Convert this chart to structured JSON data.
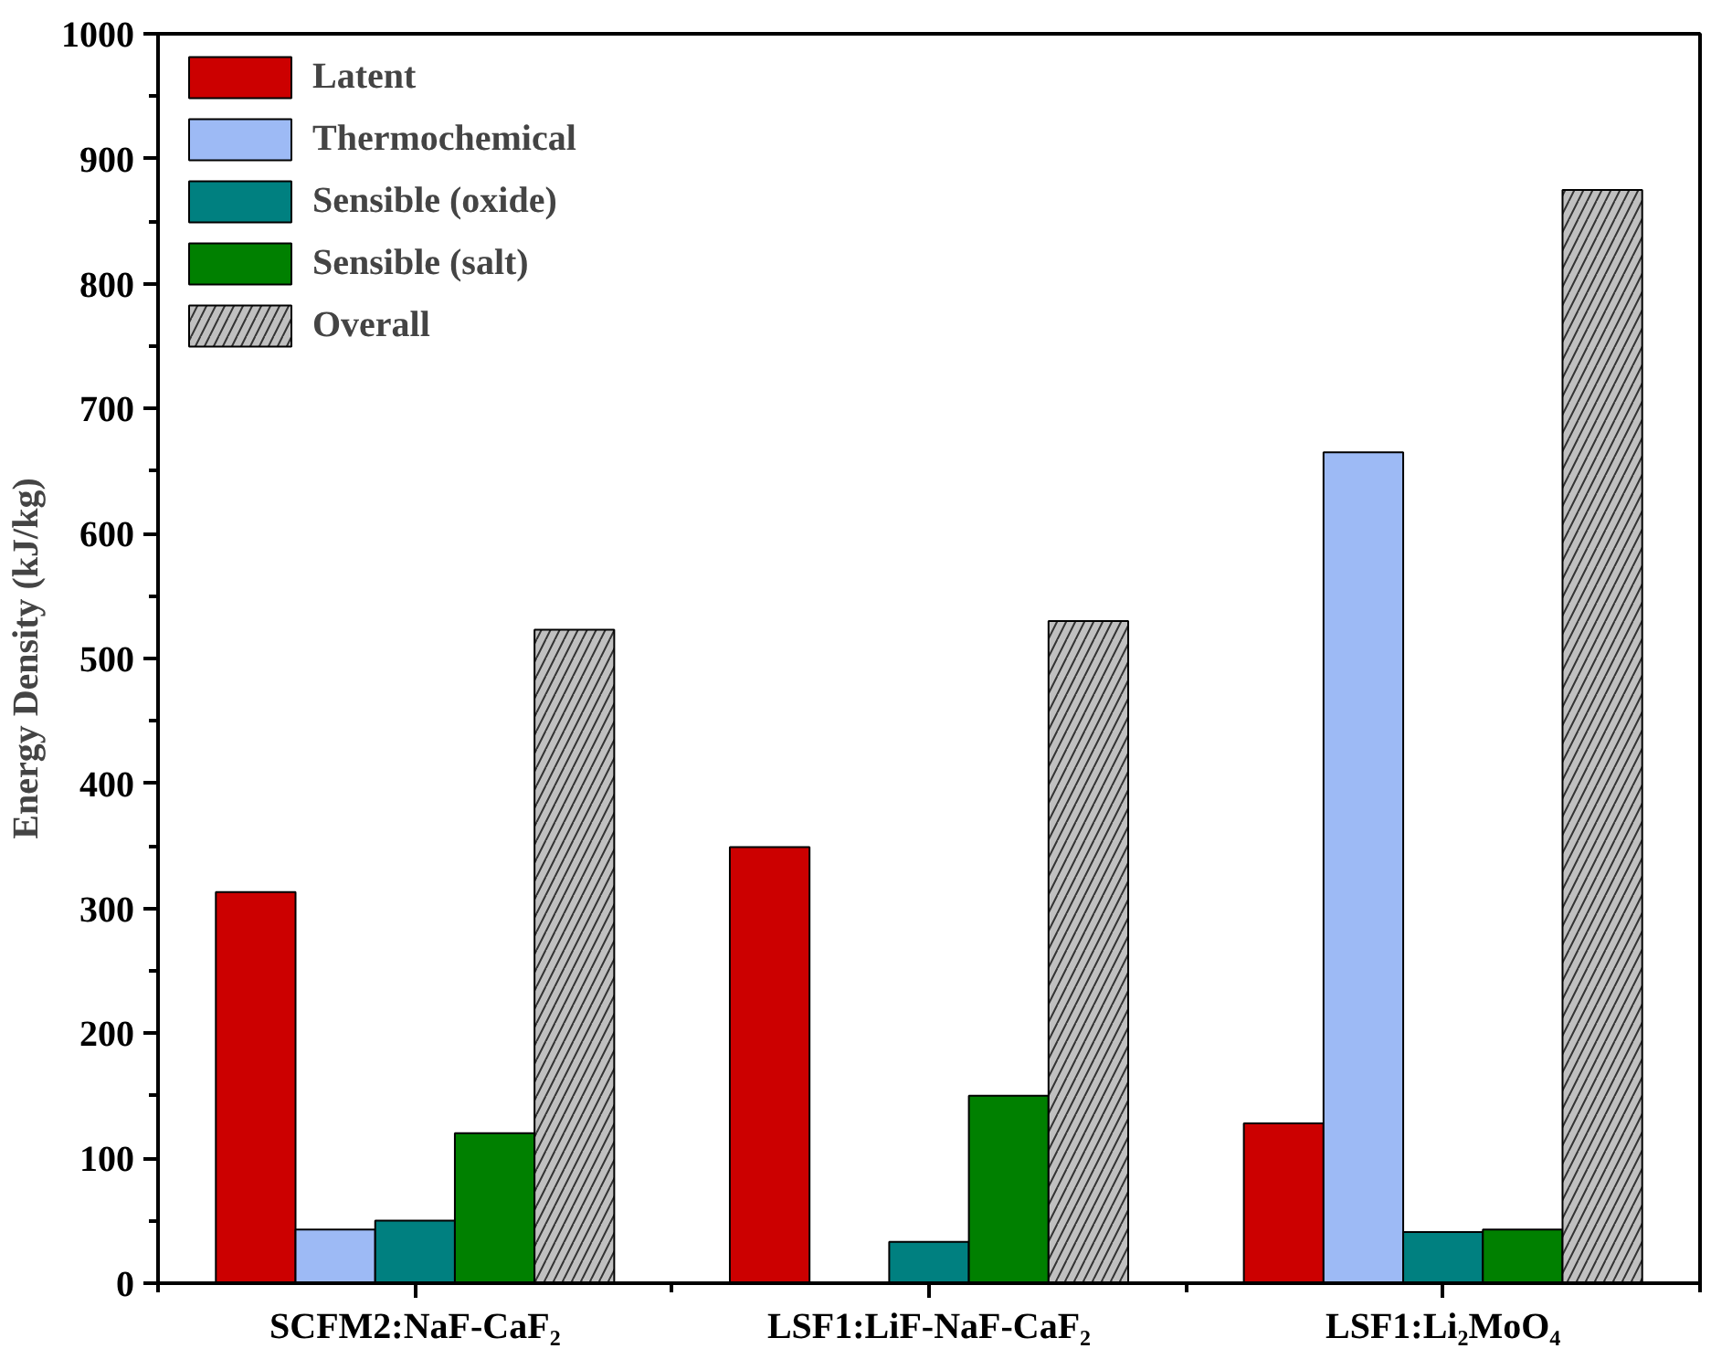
{
  "chart_data": {
    "type": "bar",
    "ylabel": "Energy Density (kJ/kg)",
    "categories": [
      "SCFM2:NaF-CaF₂",
      "LSF1:LiF-NaF-CaF₂",
      "LSF1:Li₂MoO₄"
    ],
    "series": [
      {
        "name": "Latent",
        "color": "#cc0000",
        "values": [
          313,
          349,
          128
        ]
      },
      {
        "name": "Thermochemical",
        "color": "#9dbaf5",
        "values": [
          43,
          null,
          665
        ]
      },
      {
        "name": "Sensible (oxide)",
        "color": "#008080",
        "values": [
          50,
          33,
          41
        ]
      },
      {
        "name": "Sensible (salt)",
        "color": "#008000",
        "values": [
          120,
          150,
          43
        ]
      },
      {
        "name": "Overall",
        "color": "#c0c0c0",
        "values": [
          523,
          530,
          875
        ]
      }
    ],
    "ylim": [
      0,
      1000
    ],
    "yticks": [
      0,
      100,
      200,
      300,
      400,
      500,
      600,
      700,
      800,
      900,
      1000
    ],
    "grid": false,
    "legend": "top left"
  }
}
